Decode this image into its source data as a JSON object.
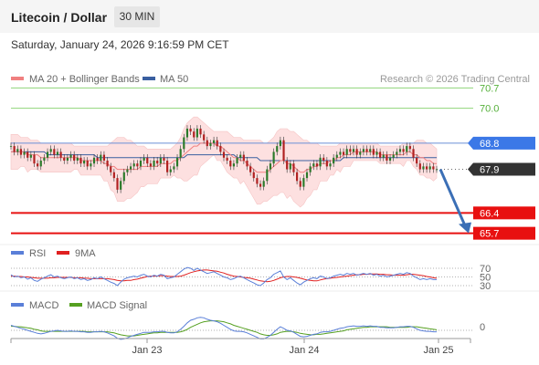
{
  "header": {
    "title": "Litecoin / Dollar",
    "interval": "30 MIN"
  },
  "datetime": "Saturday, January 24, 2026 9:16:59 PM CET",
  "legend": {
    "ma20": "MA 20 + Bollinger Bands",
    "ma50": "MA 50",
    "credit": "Research © 2026 Trading Central"
  },
  "colors": {
    "ma20": "#f08080",
    "ma50": "#3a5fa0",
    "resistance": "#8fd47a",
    "support": "#e81010",
    "pivot_blue": "#3b78e7",
    "current": "#333333",
    "forecast": "#3b6fb6",
    "rsi": "#5a7fd8",
    "rsi_ma": "#e02020",
    "macd": "#5a7fd8",
    "macd_signal": "#55a020",
    "band_fill": "#fde0e0"
  },
  "chart_data": [
    {
      "type": "candlestick",
      "title": "Litecoin / Dollar",
      "ylim": [
        65.5,
        70.9
      ],
      "x_ticks": [
        "Jan 23",
        "Jan 24",
        "Jan 25"
      ],
      "levels": [
        {
          "value": 70.7,
          "label": "70.7",
          "kind": "resistance"
        },
        {
          "value": 70.0,
          "label": "70.0",
          "kind": "resistance"
        },
        {
          "value": 68.8,
          "label": "68.8",
          "kind": "pivot"
        },
        {
          "value": 67.9,
          "label": "67.9",
          "kind": "current"
        },
        {
          "value": 66.4,
          "label": "66.4",
          "kind": "support"
        },
        {
          "value": 65.7,
          "label": "65.7",
          "kind": "support"
        }
      ],
      "close": [
        68.7,
        68.5,
        68.6,
        68.4,
        68.5,
        68.3,
        68.4,
        68.1,
        68.0,
        68.2,
        68.3,
        68.5,
        68.6,
        68.4,
        68.5,
        68.3,
        68.2,
        68.3,
        68.4,
        68.2,
        68.3,
        68.1,
        68.2,
        68.0,
        68.1,
        68.3,
        68.2,
        68.4,
        68.2,
        68.0,
        67.8,
        67.6,
        67.2,
        67.5,
        67.8,
        67.9,
        68.0,
        68.1,
        68.0,
        68.2,
        68.3,
        68.1,
        68.0,
        68.2,
        68.1,
        68.3,
        68.2,
        67.8,
        67.9,
        68.0,
        68.3,
        68.6,
        69.0,
        69.3,
        69.2,
        69.0,
        69.3,
        69.1,
        68.9,
        68.7,
        68.8,
        68.9,
        68.7,
        68.5,
        68.3,
        68.2,
        68.0,
        68.1,
        68.3,
        68.4,
        68.2,
        68.0,
        67.8,
        67.6,
        67.4,
        67.3,
        67.5,
        67.9,
        68.1,
        68.5,
        68.7,
        68.9,
        68.2,
        67.9,
        68.1,
        67.8,
        67.5,
        67.3,
        67.6,
        67.8,
        68.0,
        68.1,
        68.0,
        68.3,
        68.2,
        68.0,
        68.1,
        68.3,
        68.4,
        68.5,
        68.4,
        68.6,
        68.5,
        68.6,
        68.4,
        68.5,
        68.6,
        68.5,
        68.6,
        68.4,
        68.5,
        68.3,
        68.4,
        68.2,
        68.3,
        68.4,
        68.5,
        68.6,
        68.5,
        68.7,
        68.6,
        68.3,
        68.1,
        67.9,
        68.0,
        67.9,
        68.0,
        67.9,
        67.9
      ],
      "ma20": [
        68.5,
        68.5,
        68.5,
        68.5,
        68.5,
        68.4,
        68.4,
        68.4,
        68.4,
        68.3,
        68.3,
        68.3,
        68.3,
        68.3,
        68.3,
        68.3,
        68.3,
        68.3,
        68.3,
        68.3,
        68.3,
        68.2,
        68.2,
        68.2,
        68.2,
        68.2,
        68.2,
        68.2,
        68.1,
        68.1,
        68.0,
        68.0,
        67.9,
        67.9,
        67.9,
        67.9,
        67.9,
        67.9,
        67.9,
        68.0,
        68.0,
        68.0,
        68.0,
        68.0,
        68.0,
        68.1,
        68.1,
        68.1,
        68.1,
        68.2,
        68.2,
        68.3,
        68.4,
        68.5,
        68.6,
        68.7,
        68.7,
        68.8,
        68.8,
        68.8,
        68.8,
        68.8,
        68.7,
        68.7,
        68.6,
        68.5,
        68.4,
        68.3,
        68.3,
        68.2,
        68.2,
        68.1,
        68.0,
        67.9,
        67.8,
        67.8,
        67.8,
        67.8,
        67.9,
        68.0,
        68.1,
        68.2,
        68.2,
        68.1,
        68.1,
        68.0,
        67.9,
        67.8,
        67.8,
        67.9,
        67.9,
        68.0,
        68.0,
        68.1,
        68.1,
        68.1,
        68.2,
        68.2,
        68.3,
        68.3,
        68.4,
        68.4,
        68.4,
        68.5,
        68.5,
        68.5,
        68.5,
        68.5,
        68.5,
        68.5,
        68.5,
        68.4,
        68.4,
        68.4,
        68.4,
        68.4,
        68.4,
        68.4,
        68.4,
        68.5,
        68.5,
        68.4,
        68.4,
        68.3,
        68.3,
        68.2,
        68.2,
        68.1,
        68.1
      ],
      "ma50": [
        68.5,
        68.5,
        68.5,
        68.5,
        68.5,
        68.5,
        68.5,
        68.5,
        68.5,
        68.5,
        68.5,
        68.4,
        68.4,
        68.4,
        68.4,
        68.4,
        68.4,
        68.4,
        68.4,
        68.4,
        68.4,
        68.4,
        68.4,
        68.4,
        68.4,
        68.4,
        68.3,
        68.3,
        68.3,
        68.3,
        68.3,
        68.3,
        68.3,
        68.3,
        68.3,
        68.3,
        68.3,
        68.3,
        68.3,
        68.3,
        68.3,
        68.3,
        68.3,
        68.3,
        68.3,
        68.3,
        68.3,
        68.3,
        68.3,
        68.3,
        68.3,
        68.3,
        68.3,
        68.4,
        68.4,
        68.4,
        68.4,
        68.4,
        68.4,
        68.4,
        68.4,
        68.4,
        68.4,
        68.4,
        68.4,
        68.4,
        68.4,
        68.4,
        68.3,
        68.3,
        68.3,
        68.3,
        68.3,
        68.3,
        68.3,
        68.2,
        68.2,
        68.2,
        68.2,
        68.2,
        68.2,
        68.2,
        68.2,
        68.2,
        68.2,
        68.2,
        68.2,
        68.2,
        68.2,
        68.2,
        68.2,
        68.2,
        68.2,
        68.2,
        68.2,
        68.2,
        68.2,
        68.2,
        68.2,
        68.2,
        68.3,
        68.3,
        68.3,
        68.3,
        68.3,
        68.3,
        68.3,
        68.3,
        68.3,
        68.3,
        68.3,
        68.3,
        68.3,
        68.3,
        68.3,
        68.3,
        68.3,
        68.3,
        68.3,
        68.3,
        68.3,
        68.3,
        68.3,
        68.3,
        68.3,
        68.3,
        68.3,
        68.3,
        68.3
      ],
      "bb_upper": [
        69.1,
        69.1,
        69.1,
        69.0,
        69.0,
        69.0,
        68.9,
        68.9,
        68.9,
        68.8,
        68.8,
        68.8,
        68.8,
        68.8,
        68.8,
        68.8,
        68.8,
        68.8,
        68.8,
        68.7,
        68.7,
        68.7,
        68.7,
        68.7,
        68.7,
        68.7,
        68.7,
        68.7,
        68.7,
        68.7,
        68.8,
        68.9,
        69.0,
        69.0,
        69.0,
        68.9,
        68.9,
        68.8,
        68.7,
        68.7,
        68.7,
        68.6,
        68.6,
        68.6,
        68.6,
        68.6,
        68.6,
        68.6,
        68.6,
        68.7,
        68.8,
        69.0,
        69.3,
        69.5,
        69.6,
        69.7,
        69.7,
        69.6,
        69.5,
        69.4,
        69.3,
        69.2,
        69.2,
        69.2,
        69.2,
        69.2,
        69.1,
        69.0,
        69.0,
        69.0,
        68.9,
        68.9,
        68.9,
        68.9,
        68.9,
        68.9,
        68.8,
        68.8,
        68.9,
        69.0,
        69.2,
        69.3,
        69.3,
        69.3,
        69.2,
        69.2,
        69.1,
        69.0,
        68.9,
        68.9,
        68.8,
        68.8,
        68.8,
        68.7,
        68.7,
        68.7,
        68.7,
        68.7,
        68.7,
        68.8,
        68.8,
        68.8,
        68.8,
        68.8,
        68.8,
        68.8,
        68.8,
        68.8,
        68.8,
        68.8,
        68.8,
        68.7,
        68.7,
        68.7,
        68.7,
        68.7,
        68.7,
        68.7,
        68.8,
        68.8,
        68.8,
        68.8,
        68.9,
        68.9,
        68.9,
        68.8,
        68.8,
        68.7,
        68.6
      ],
      "bb_lower": [
        67.9,
        67.9,
        67.9,
        68.0,
        68.0,
        67.8,
        67.9,
        67.9,
        67.9,
        67.8,
        67.8,
        67.8,
        67.8,
        67.8,
        67.8,
        67.8,
        67.8,
        67.8,
        67.8,
        67.9,
        67.9,
        67.7,
        67.7,
        67.7,
        67.7,
        67.7,
        67.7,
        67.7,
        67.5,
        67.5,
        67.2,
        67.1,
        66.8,
        66.8,
        66.8,
        66.9,
        66.9,
        67.0,
        67.1,
        67.3,
        67.3,
        67.4,
        67.4,
        67.4,
        67.4,
        67.6,
        67.6,
        67.6,
        67.6,
        67.7,
        67.6,
        67.6,
        67.5,
        67.5,
        67.6,
        67.7,
        67.7,
        68.0,
        68.1,
        68.2,
        68.3,
        68.4,
        68.2,
        68.2,
        68.0,
        67.8,
        67.7,
        67.6,
        67.6,
        67.4,
        67.5,
        67.3,
        67.1,
        66.9,
        66.7,
        66.7,
        66.8,
        66.8,
        66.9,
        67.0,
        67.0,
        67.1,
        67.1,
        66.9,
        67.0,
        66.8,
        66.7,
        66.6,
        66.7,
        66.9,
        67.0,
        67.2,
        67.2,
        67.5,
        67.5,
        67.5,
        67.7,
        67.7,
        67.9,
        67.8,
        68.0,
        68.0,
        68.0,
        68.2,
        68.2,
        68.2,
        68.2,
        68.2,
        68.2,
        68.2,
        68.2,
        68.1,
        68.1,
        68.1,
        68.1,
        68.1,
        68.1,
        68.1,
        68.0,
        68.2,
        68.2,
        68.0,
        67.9,
        67.7,
        67.7,
        67.6,
        67.6,
        67.5,
        67.6
      ],
      "forecast": [
        67.9,
        65.7
      ]
    },
    {
      "type": "line",
      "legend": [
        "RSI",
        "9MA"
      ],
      "y_ticks": [
        "70",
        "50",
        "30"
      ],
      "ylim": [
        0,
        100
      ],
      "rsi": [
        55,
        50,
        52,
        48,
        50,
        45,
        48,
        42,
        40,
        45,
        48,
        52,
        55,
        50,
        52,
        48,
        46,
        48,
        50,
        46,
        48,
        44,
        46,
        42,
        44,
        48,
        46,
        50,
        46,
        42,
        38,
        35,
        30,
        38,
        45,
        48,
        50,
        52,
        50,
        54,
        56,
        52,
        50,
        54,
        52,
        56,
        54,
        46,
        48,
        50,
        56,
        62,
        68,
        72,
        70,
        65,
        70,
        66,
        62,
        58,
        60,
        62,
        58,
        54,
        50,
        48,
        44,
        46,
        50,
        52,
        48,
        44,
        40,
        36,
        32,
        30,
        36,
        44,
        48,
        56,
        60,
        64,
        50,
        44,
        48,
        42,
        36,
        32,
        38,
        42,
        46,
        48,
        46,
        52,
        50,
        46,
        48,
        52,
        54,
        56,
        54,
        58,
        56,
        58,
        54,
        56,
        58,
        56,
        58,
        54,
        56,
        52,
        54,
        50,
        52,
        54,
        56,
        58,
        56,
        60,
        58,
        52,
        48,
        44,
        46,
        44,
        46,
        44,
        44
      ],
      "rsi_ma": [
        52,
        52,
        51,
        51,
        50,
        50,
        49,
        48,
        47,
        47,
        47,
        47,
        48,
        48,
        49,
        49,
        49,
        49,
        49,
        48,
        48,
        48,
        47,
        47,
        46,
        46,
        46,
        46,
        46,
        46,
        45,
        44,
        42,
        41,
        41,
        42,
        42,
        44,
        45,
        47,
        49,
        51,
        52,
        52,
        52,
        53,
        53,
        52,
        51,
        51,
        51,
        52,
        54,
        57,
        60,
        62,
        64,
        65,
        66,
        66,
        65,
        64,
        63,
        61,
        59,
        56,
        54,
        52,
        51,
        50,
        49,
        48,
        47,
        45,
        43,
        41,
        40,
        39,
        40,
        42,
        45,
        48,
        50,
        51,
        51,
        50,
        49,
        47,
        45,
        43,
        42,
        41,
        41,
        43,
        45,
        46,
        47,
        48,
        49,
        50,
        51,
        52,
        53,
        54,
        55,
        55,
        56,
        56,
        57,
        57,
        57,
        56,
        56,
        55,
        55,
        54,
        54,
        54,
        54,
        55,
        56,
        56,
        55,
        54,
        53,
        51,
        50,
        48,
        47
      ]
    },
    {
      "type": "line",
      "legend": [
        "MACD",
        "MACD Signal"
      ],
      "y_ticks": [
        "0"
      ],
      "macd": [
        0.1,
        0.08,
        0.06,
        0.04,
        0.02,
        0.0,
        -0.02,
        -0.04,
        -0.06,
        -0.07,
        -0.06,
        -0.04,
        -0.02,
        -0.01,
        0.0,
        -0.01,
        -0.02,
        -0.02,
        -0.01,
        -0.02,
        -0.02,
        -0.03,
        -0.03,
        -0.04,
        -0.04,
        -0.03,
        -0.03,
        -0.02,
        -0.03,
        -0.05,
        -0.08,
        -0.11,
        -0.16,
        -0.18,
        -0.17,
        -0.15,
        -0.12,
        -0.1,
        -0.08,
        -0.06,
        -0.04,
        -0.04,
        -0.04,
        -0.03,
        -0.03,
        -0.02,
        -0.02,
        -0.04,
        -0.05,
        -0.05,
        -0.03,
        0.02,
        0.08,
        0.15,
        0.2,
        0.22,
        0.25,
        0.26,
        0.25,
        0.22,
        0.2,
        0.19,
        0.17,
        0.14,
        0.1,
        0.06,
        0.02,
        -0.01,
        -0.02,
        -0.02,
        -0.03,
        -0.05,
        -0.08,
        -0.11,
        -0.14,
        -0.17,
        -0.17,
        -0.14,
        -0.1,
        -0.04,
        0.02,
        0.07,
        0.04,
        0.0,
        -0.01,
        -0.04,
        -0.08,
        -0.12,
        -0.13,
        -0.12,
        -0.1,
        -0.08,
        -0.07,
        -0.04,
        -0.03,
        -0.03,
        -0.02,
        0.0,
        0.02,
        0.04,
        0.05,
        0.07,
        0.08,
        0.09,
        0.08,
        0.08,
        0.09,
        0.08,
        0.09,
        0.08,
        0.08,
        0.06,
        0.06,
        0.05,
        0.05,
        0.05,
        0.06,
        0.07,
        0.07,
        0.08,
        0.08,
        0.06,
        0.03,
        0.0,
        -0.01,
        -0.02,
        -0.02,
        -0.03,
        -0.03
      ],
      "macd_signal": [
        0.08,
        0.08,
        0.07,
        0.07,
        0.06,
        0.05,
        0.04,
        0.02,
        0.01,
        -0.01,
        -0.02,
        -0.02,
        -0.02,
        -0.02,
        -0.02,
        -0.02,
        -0.02,
        -0.02,
        -0.02,
        -0.02,
        -0.02,
        -0.02,
        -0.02,
        -0.03,
        -0.03,
        -0.03,
        -0.03,
        -0.03,
        -0.03,
        -0.03,
        -0.04,
        -0.05,
        -0.07,
        -0.09,
        -0.1,
        -0.11,
        -0.11,
        -0.11,
        -0.1,
        -0.09,
        -0.08,
        -0.07,
        -0.06,
        -0.05,
        -0.05,
        -0.04,
        -0.04,
        -0.04,
        -0.04,
        -0.04,
        -0.04,
        -0.03,
        -0.01,
        0.02,
        0.06,
        0.09,
        0.12,
        0.15,
        0.17,
        0.18,
        0.19,
        0.19,
        0.19,
        0.18,
        0.17,
        0.15,
        0.13,
        0.1,
        0.08,
        0.06,
        0.04,
        0.02,
        0.0,
        -0.02,
        -0.04,
        -0.07,
        -0.09,
        -0.1,
        -0.1,
        -0.09,
        -0.07,
        -0.04,
        -0.03,
        -0.02,
        -0.02,
        -0.03,
        -0.04,
        -0.06,
        -0.07,
        -0.08,
        -0.09,
        -0.09,
        -0.08,
        -0.08,
        -0.07,
        -0.06,
        -0.05,
        -0.04,
        -0.03,
        -0.02,
        -0.01,
        0.01,
        0.02,
        0.03,
        0.04,
        0.05,
        0.06,
        0.06,
        0.07,
        0.07,
        0.07,
        0.07,
        0.07,
        0.07,
        0.06,
        0.06,
        0.06,
        0.06,
        0.06,
        0.06,
        0.07,
        0.07,
        0.07,
        0.06,
        0.05,
        0.04,
        0.03,
        0.02,
        0.01
      ]
    }
  ]
}
